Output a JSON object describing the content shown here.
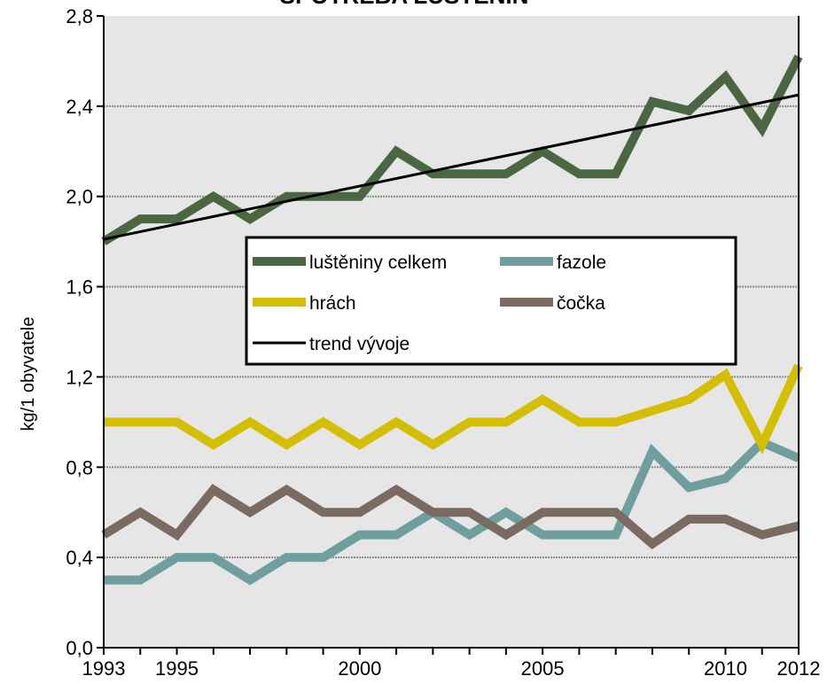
{
  "chart_data": {
    "type": "line",
    "title": "SPOTŘEBA LUŠTĚNIN",
    "xlabel": "",
    "ylabel": "kg/1 obyvatele",
    "x": [
      1993,
      1994,
      1995,
      1996,
      1997,
      1998,
      1999,
      2000,
      2001,
      2002,
      2003,
      2004,
      2005,
      2006,
      2007,
      2008,
      2009,
      2010,
      2011,
      2012
    ],
    "xlim": [
      1993,
      2012
    ],
    "ylim": [
      0,
      2.8
    ],
    "x_ticks": [
      "1993",
      "1995",
      "2000",
      "2005",
      "2010",
      "2012"
    ],
    "y_ticks": [
      "0,0",
      "0,4",
      "0,8",
      "1,2",
      "1,6",
      "2,0",
      "2,4",
      "2,8"
    ],
    "grid": true,
    "legend_position": "center",
    "series": [
      {
        "name": "luštěniny celkem",
        "color": "#4a6741",
        "values": [
          1.8,
          1.9,
          1.9,
          2.0,
          1.9,
          2.0,
          2.0,
          2.0,
          2.2,
          2.1,
          2.1,
          2.1,
          2.2,
          2.1,
          2.1,
          2.42,
          2.38,
          2.53,
          2.3,
          2.62
        ]
      },
      {
        "name": "fazole",
        "color": "#6e9e9e",
        "values": [
          0.3,
          0.3,
          0.4,
          0.4,
          0.3,
          0.4,
          0.4,
          0.5,
          0.5,
          0.6,
          0.5,
          0.6,
          0.5,
          0.5,
          0.5,
          0.87,
          0.71,
          0.75,
          0.91,
          0.84
        ]
      },
      {
        "name": "hrách",
        "color": "#d4be00",
        "values": [
          1.0,
          1.0,
          1.0,
          0.9,
          1.0,
          0.9,
          1.0,
          0.9,
          1.0,
          0.9,
          1.0,
          1.0,
          1.1,
          1.0,
          1.0,
          1.05,
          1.1,
          1.21,
          0.9,
          1.25
        ]
      },
      {
        "name": "čočka",
        "color": "#7a6a60",
        "values": [
          0.5,
          0.6,
          0.5,
          0.7,
          0.6,
          0.7,
          0.6,
          0.6,
          0.7,
          0.6,
          0.6,
          0.5,
          0.6,
          0.6,
          0.6,
          0.46,
          0.57,
          0.57,
          0.5,
          0.54
        ]
      },
      {
        "name": "trend vývoje",
        "color": "#000000",
        "trend": true,
        "x": [
          1993,
          2012
        ],
        "values": [
          1.81,
          2.45
        ]
      }
    ],
    "legend_layout": [
      [
        "luštěniny celkem",
        "fazole"
      ],
      [
        "hrách",
        "čočka"
      ],
      [
        "trend vývoje"
      ]
    ]
  }
}
